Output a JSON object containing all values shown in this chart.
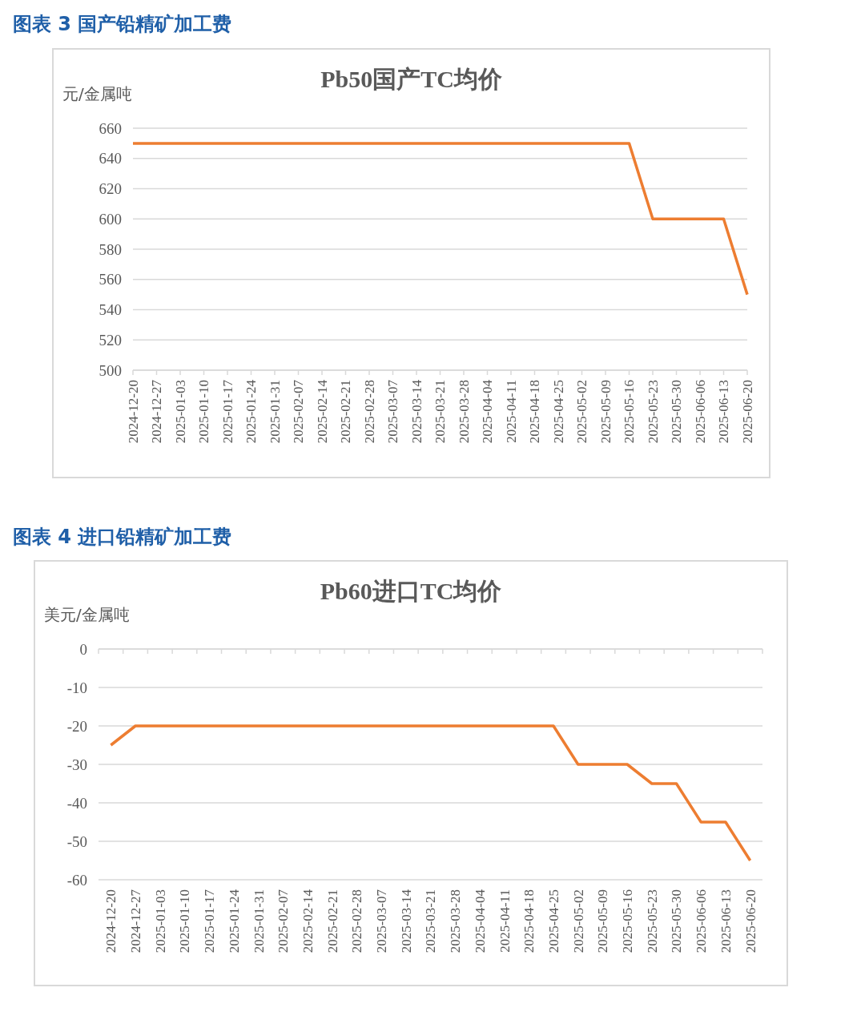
{
  "chart_data": [
    {
      "type": "line",
      "title": "图表 3 国产铅精矿加工费",
      "subtitle": "Pb50国产TC均价",
      "ylabel": "元/金属吨",
      "categories": [
        "2024-12-20",
        "2024-12-27",
        "2025-01-03",
        "2025-01-10",
        "2025-01-17",
        "2025-01-24",
        "2025-01-31",
        "2025-02-07",
        "2025-02-14",
        "2025-02-21",
        "2025-02-28",
        "2025-03-07",
        "2025-03-14",
        "2025-03-21",
        "2025-03-28",
        "2025-04-04",
        "2025-04-11",
        "2025-04-18",
        "2025-04-25",
        "2025-05-02",
        "2025-05-09",
        "2025-05-16",
        "2025-05-23",
        "2025-05-30",
        "2025-06-06",
        "2025-06-13",
        "2025-06-20"
      ],
      "series": [
        {
          "color": "#ed7d31",
          "values": [
            650,
            650,
            650,
            650,
            650,
            650,
            650,
            650,
            650,
            650,
            650,
            650,
            650,
            650,
            650,
            650,
            650,
            650,
            650,
            650,
            650,
            650,
            600,
            600,
            600,
            600,
            550
          ]
        }
      ],
      "ylim": [
        500,
        660
      ],
      "yticks": [
        500,
        520,
        540,
        560,
        580,
        600,
        620,
        640,
        660
      ],
      "grid": "y"
    },
    {
      "type": "line",
      "title": "图表 4 进口铅精矿加工费",
      "subtitle": "Pb60进口TC均价",
      "ylabel": "美元/金属吨",
      "categories": [
        "2024-12-20",
        "2024-12-27",
        "2025-01-03",
        "2025-01-10",
        "2025-01-17",
        "2025-01-24",
        "2025-01-31",
        "2025-02-07",
        "2025-02-14",
        "2025-02-21",
        "2025-02-28",
        "2025-03-07",
        "2025-03-14",
        "2025-03-21",
        "2025-03-28",
        "2025-04-04",
        "2025-04-11",
        "2025-04-18",
        "2025-04-25",
        "2025-05-02",
        "2025-05-09",
        "2025-05-16",
        "2025-05-23",
        "2025-05-30",
        "2025-06-06",
        "2025-06-13",
        "2025-06-20"
      ],
      "series": [
        {
          "color": "#ed7d31",
          "values": [
            -25,
            -20,
            -20,
            -20,
            -20,
            -20,
            -20,
            -20,
            -20,
            -20,
            -20,
            -20,
            -20,
            -20,
            -20,
            -20,
            -20,
            -20,
            -20,
            -30,
            -30,
            -30,
            -35,
            -35,
            -45,
            -45,
            -55
          ]
        }
      ],
      "ylim": [
        -60,
        0
      ],
      "yticks": [
        -60,
        -50,
        -40,
        -30,
        -20,
        -10,
        0
      ],
      "grid": "y"
    }
  ]
}
